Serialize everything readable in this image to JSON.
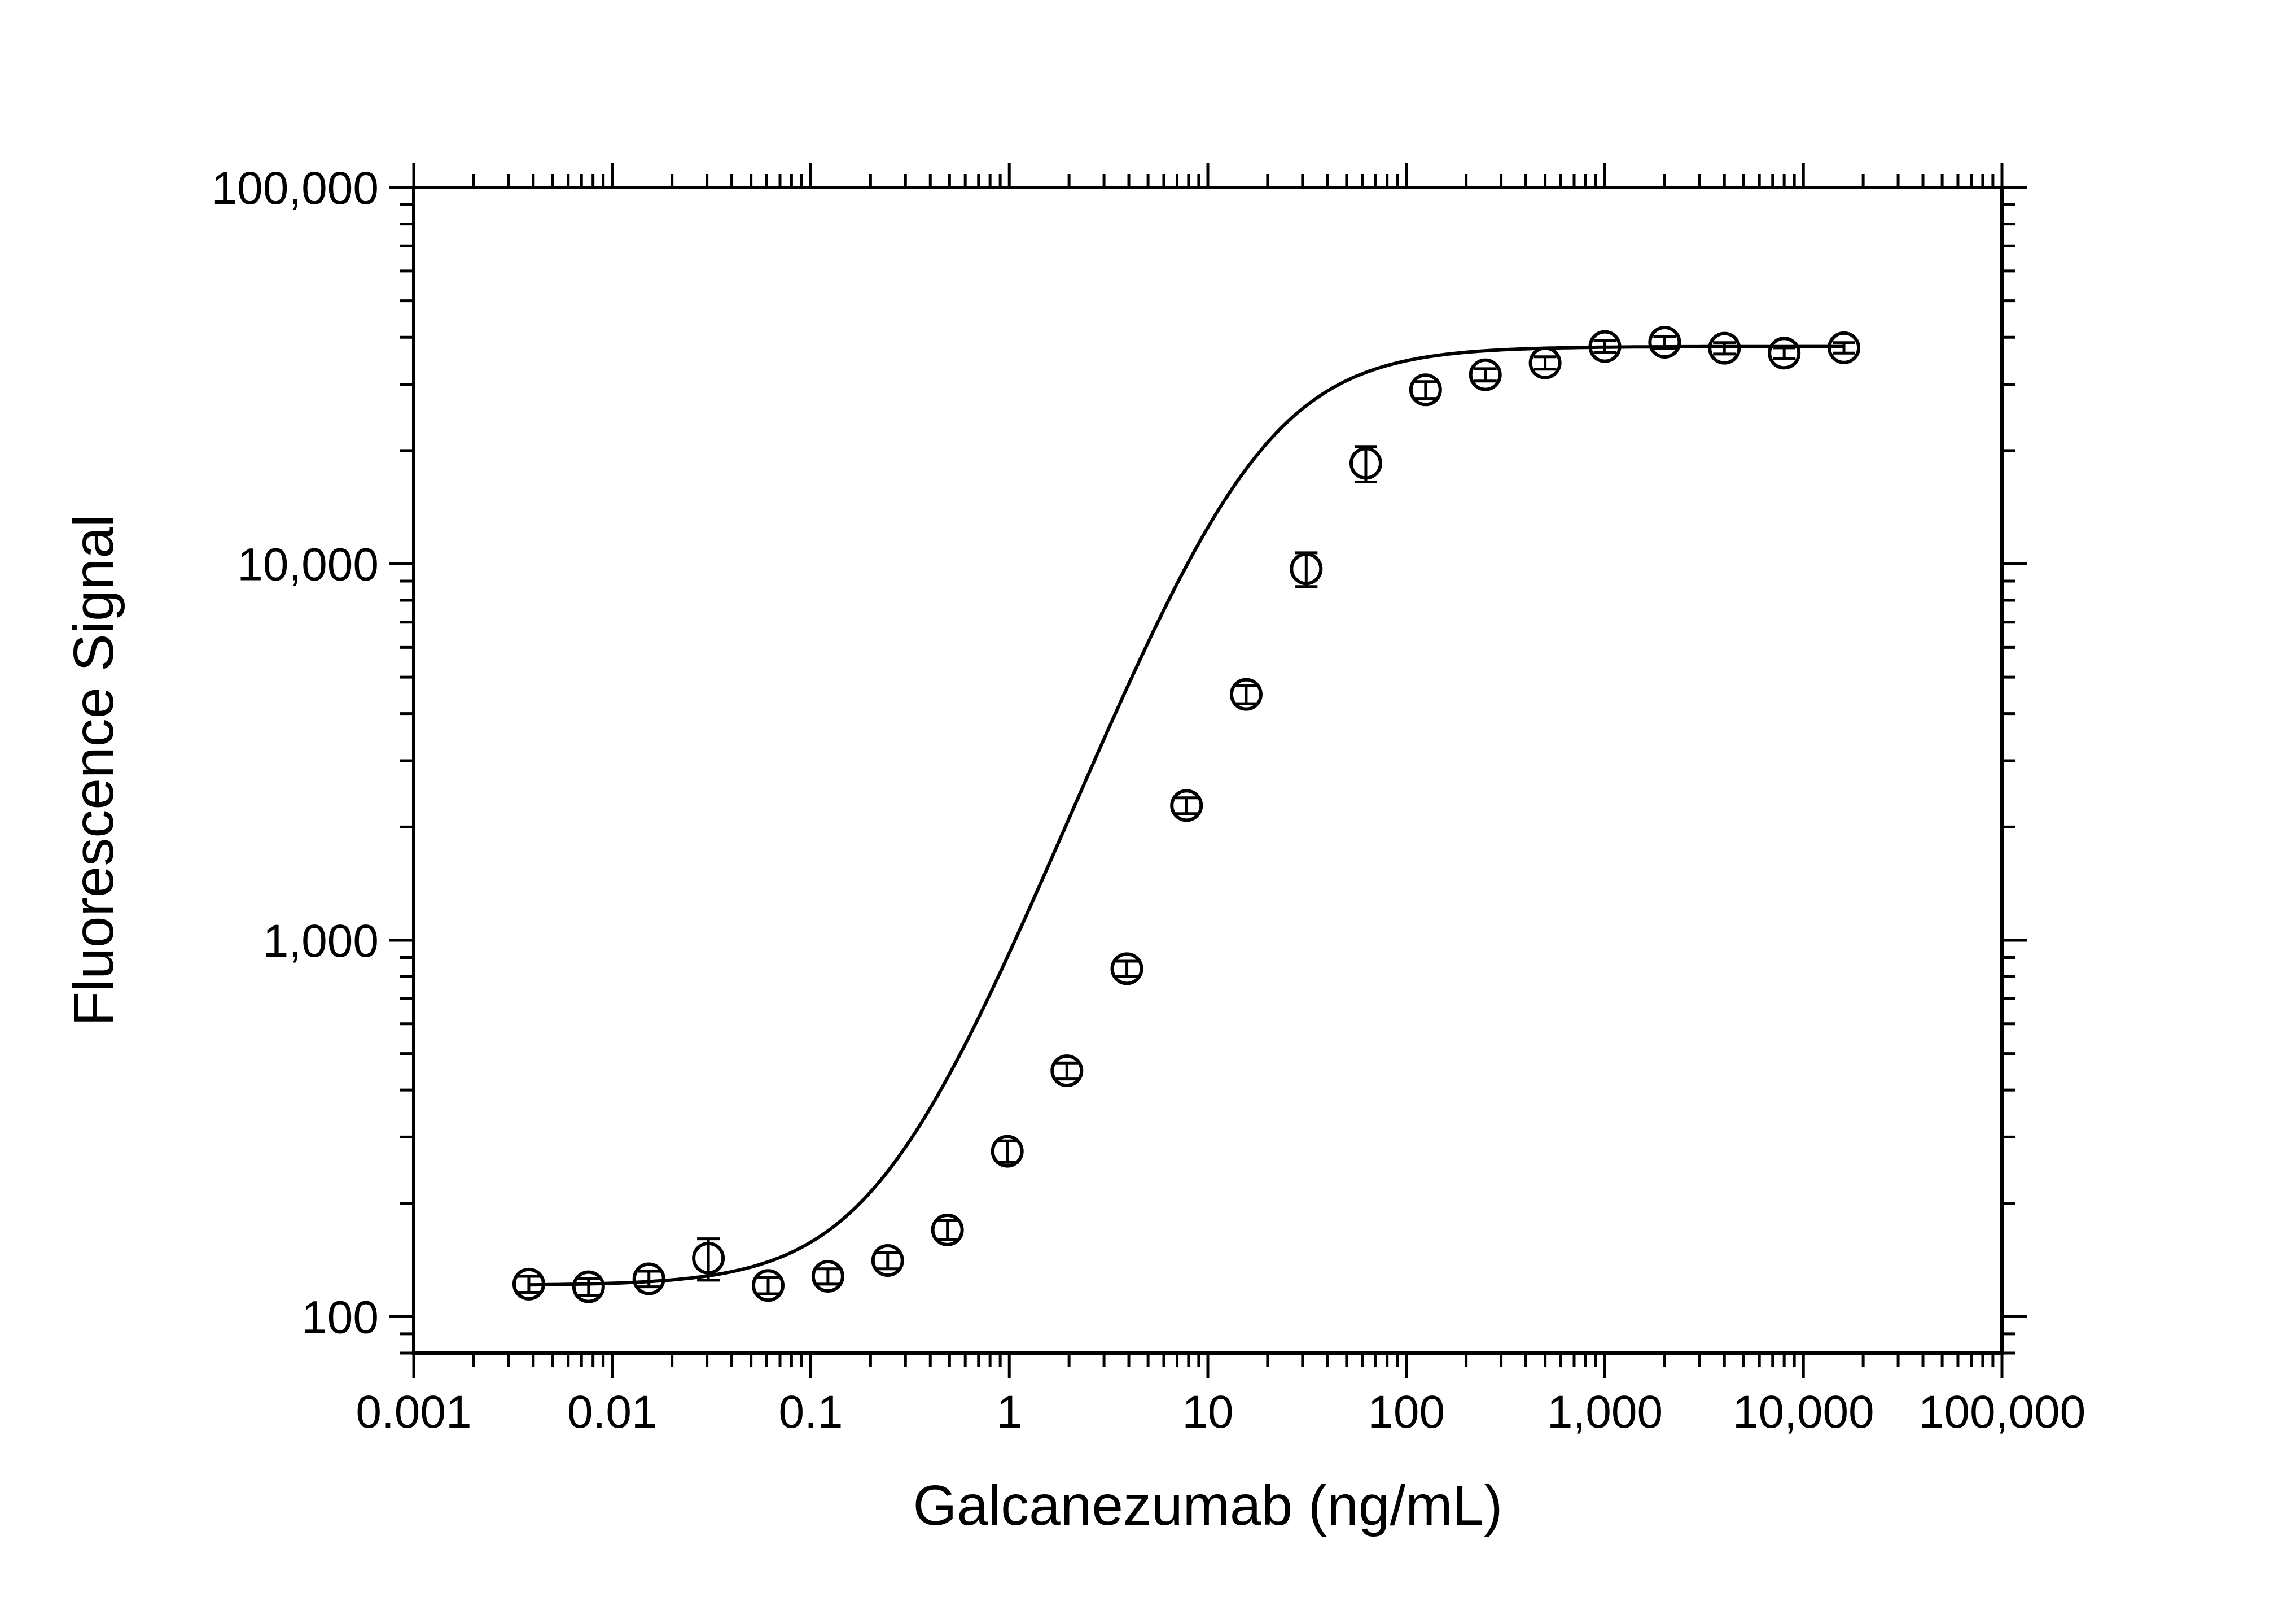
{
  "chart_data": {
    "type": "scatter",
    "title": "",
    "xlabel": "Galcanezumab (ng/mL)",
    "ylabel": "Fluorescence Signal",
    "xscale": "log",
    "yscale": "log",
    "xlim": [
      0.001,
      100000
    ],
    "ylim": [
      80,
      100000
    ],
    "grid": false,
    "legend": "none",
    "x_ticks": [
      {
        "value": 0.001,
        "label": "0.001"
      },
      {
        "value": 0.01,
        "label": "0.01"
      },
      {
        "value": 0.1,
        "label": "0.1"
      },
      {
        "value": 1,
        "label": "1"
      },
      {
        "value": 10,
        "label": "10"
      },
      {
        "value": 100,
        "label": "100"
      },
      {
        "value": 1000,
        "label": "1,000"
      },
      {
        "value": 10000,
        "label": "10,000"
      },
      {
        "value": 100000,
        "label": "100,000"
      }
    ],
    "y_ticks": [
      {
        "value": 100,
        "label": "100"
      },
      {
        "value": 1000,
        "label": "1,000"
      },
      {
        "value": 10000,
        "label": "10,000"
      },
      {
        "value": 100000,
        "label": "100,000"
      }
    ],
    "series": [
      {
        "marker": "open-circle",
        "color": "#000000",
        "points": [
          {
            "x": 0.0038,
            "y": 122,
            "err": 6
          },
          {
            "x": 0.0076,
            "y": 120,
            "err": 6
          },
          {
            "x": 0.0153,
            "y": 126,
            "err": 6
          },
          {
            "x": 0.0305,
            "y": 143,
            "err": 18
          },
          {
            "x": 0.061,
            "y": 121,
            "err": 6
          },
          {
            "x": 0.122,
            "y": 128,
            "err": 6
          },
          {
            "x": 0.244,
            "y": 141,
            "err": 7
          },
          {
            "x": 0.488,
            "y": 170,
            "err": 10
          },
          {
            "x": 0.977,
            "y": 275,
            "err": 18
          },
          {
            "x": 1.95,
            "y": 450,
            "err": 22
          },
          {
            "x": 3.91,
            "y": 840,
            "err": 40
          },
          {
            "x": 7.81,
            "y": 2280,
            "err": 110
          },
          {
            "x": 15.6,
            "y": 4500,
            "err": 250
          },
          {
            "x": 31.3,
            "y": 9700,
            "err": 1000
          },
          {
            "x": 62.5,
            "y": 18500,
            "err": 2000
          },
          {
            "x": 125,
            "y": 29000,
            "err": 1500
          },
          {
            "x": 250,
            "y": 31800,
            "err": 1200
          },
          {
            "x": 500,
            "y": 34200,
            "err": 1300
          },
          {
            "x": 1000,
            "y": 37800,
            "err": 1400
          },
          {
            "x": 2000,
            "y": 38800,
            "err": 1400
          },
          {
            "x": 4000,
            "y": 37400,
            "err": 1300
          },
          {
            "x": 8000,
            "y": 36300,
            "err": 1200
          },
          {
            "x": 16000,
            "y": 37500,
            "err": 1200
          }
        ]
      }
    ],
    "fit": {
      "type": "4PL",
      "bottom": 121,
      "top": 37800,
      "ec50": 17,
      "hill": 1.35
    }
  }
}
